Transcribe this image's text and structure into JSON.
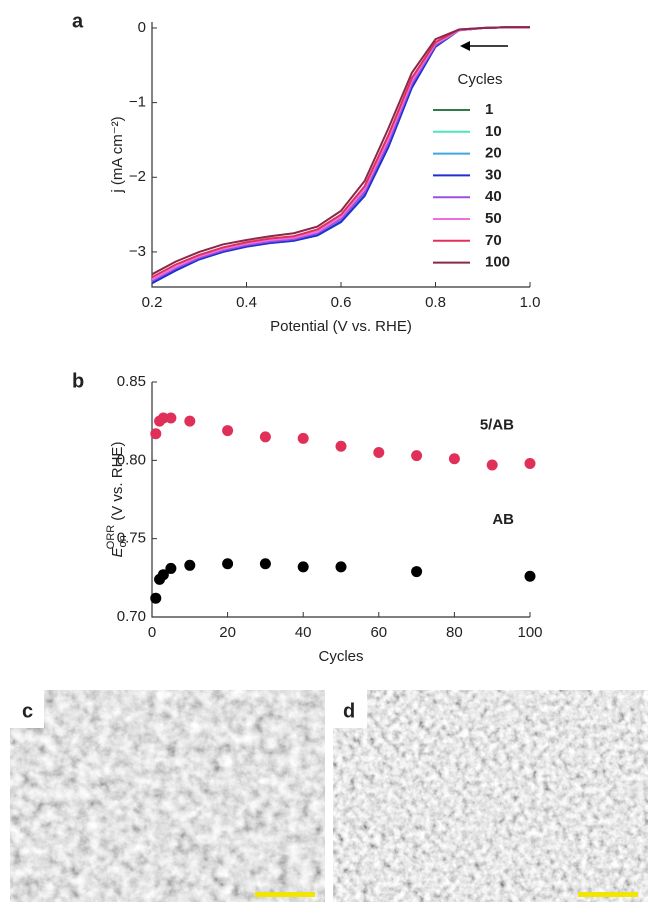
{
  "chart_data": [
    {
      "type": "line",
      "panel_label": "a",
      "x_label": "Potential (V vs. RHE)",
      "y_label": "j (mA cm⁻²)",
      "legend_title": "Cycles",
      "legend": "right",
      "x": [
        0.2,
        0.25,
        0.3,
        0.35,
        0.4,
        0.45,
        0.5,
        0.55,
        0.6,
        0.65,
        0.7,
        0.75,
        0.8,
        0.85,
        0.9,
        0.95,
        1.0
      ],
      "xlim": [
        0.2,
        1.0
      ],
      "xticks": [
        0.2,
        0.4,
        0.6,
        0.8,
        {
          "value": 1.0,
          "label": "1.0"
        }
      ],
      "ylim": [
        -3.47,
        0.08
      ],
      "yticks": [
        0,
        {
          "value": -1,
          "label": "−1"
        },
        {
          "value": -2,
          "label": "−2"
        },
        {
          "value": -3,
          "label": "−3"
        }
      ],
      "series": [
        {
          "name": "1",
          "color": "#2f7a45",
          "values": [
            -3.41,
            -3.24,
            -3.09,
            -2.99,
            -2.92,
            -2.87,
            -2.84,
            -2.77,
            -2.59,
            -2.23,
            -1.58,
            -0.78,
            -0.24,
            -0.03,
            0,
            0.01,
            0.01
          ]
        },
        {
          "name": "10",
          "color": "#4fe3c0",
          "values": [
            -3.42,
            -3.25,
            -3.1,
            -3.0,
            -2.93,
            -2.88,
            -2.85,
            -2.78,
            -2.6,
            -2.25,
            -1.6,
            -0.8,
            -0.25,
            -0.03,
            0,
            0.01,
            0.01
          ]
        },
        {
          "name": "20",
          "color": "#3fa6e0",
          "values": [
            -3.41,
            -3.24,
            -3.1,
            -3.0,
            -2.93,
            -2.88,
            -2.85,
            -2.77,
            -2.59,
            -2.24,
            -1.59,
            -0.79,
            -0.25,
            -0.03,
            0,
            0.01,
            0.01
          ]
        },
        {
          "name": "30",
          "color": "#1f2fd0",
          "values": [
            -3.42,
            -3.25,
            -3.1,
            -3.0,
            -2.93,
            -2.88,
            -2.85,
            -2.78,
            -2.6,
            -2.25,
            -1.6,
            -0.8,
            -0.25,
            -0.03,
            0,
            0.01,
            0.01
          ]
        },
        {
          "name": "40",
          "color": "#9a50e0",
          "values": [
            -3.39,
            -3.22,
            -3.08,
            -2.98,
            -2.91,
            -2.86,
            -2.83,
            -2.75,
            -2.56,
            -2.2,
            -1.54,
            -0.75,
            -0.23,
            -0.03,
            0,
            0.01,
            0.01
          ]
        },
        {
          "name": "50",
          "color": "#f06ee0",
          "values": [
            -3.37,
            -3.2,
            -3.06,
            -2.96,
            -2.89,
            -2.84,
            -2.81,
            -2.73,
            -2.53,
            -2.16,
            -1.49,
            -0.71,
            -0.21,
            -0.03,
            0,
            0.01,
            0.01
          ]
        },
        {
          "name": "70",
          "color": "#e0305a",
          "values": [
            -3.34,
            -3.17,
            -3.04,
            -2.94,
            -2.87,
            -2.82,
            -2.79,
            -2.7,
            -2.5,
            -2.12,
            -1.44,
            -0.67,
            -0.19,
            -0.02,
            0,
            0.01,
            0.01
          ]
        },
        {
          "name": "100",
          "color": "#8a2848",
          "values": [
            -3.3,
            -3.13,
            -3.0,
            -2.9,
            -2.84,
            -2.79,
            -2.75,
            -2.66,
            -2.45,
            -2.05,
            -1.35,
            -0.6,
            -0.15,
            -0.02,
            0,
            0.01,
            0.01
          ]
        }
      ]
    },
    {
      "type": "scatter",
      "panel_label": "b",
      "x_label": "Cycles",
      "y_label": {
        "main": "E",
        "subscript": "on",
        "superscript": "ORR",
        "rest": "(V vs. RHE)"
      },
      "xlim": [
        0,
        100
      ],
      "xticks": [
        0,
        20,
        40,
        60,
        80,
        100
      ],
      "ylim": [
        0.7,
        0.85
      ],
      "yticks": [
        {
          "value": 0.7,
          "label": "0.70"
        },
        0.75,
        {
          "value": 0.8,
          "label": "0.80"
        },
        0.85
      ],
      "series": [
        {
          "name": "5/AB",
          "color": "#e0305a",
          "x": [
            1,
            2,
            3,
            5,
            10,
            20,
            30,
            40,
            50,
            60,
            70,
            80,
            90,
            100
          ],
          "values": [
            0.817,
            0.825,
            0.827,
            0.827,
            0.825,
            0.819,
            0.815,
            0.814,
            0.809,
            0.805,
            0.803,
            0.801,
            0.797,
            0.798
          ]
        },
        {
          "name": "AB",
          "color": "#000000",
          "x": [
            1,
            2,
            3,
            5,
            10,
            20,
            30,
            40,
            50,
            70,
            100
          ],
          "values": [
            0.712,
            0.724,
            0.727,
            0.731,
            0.733,
            0.734,
            0.734,
            0.732,
            0.732,
            0.729,
            0.726
          ]
        }
      ]
    }
  ],
  "images": [
    {
      "panel_label": "c"
    },
    {
      "panel_label": "d"
    }
  ]
}
